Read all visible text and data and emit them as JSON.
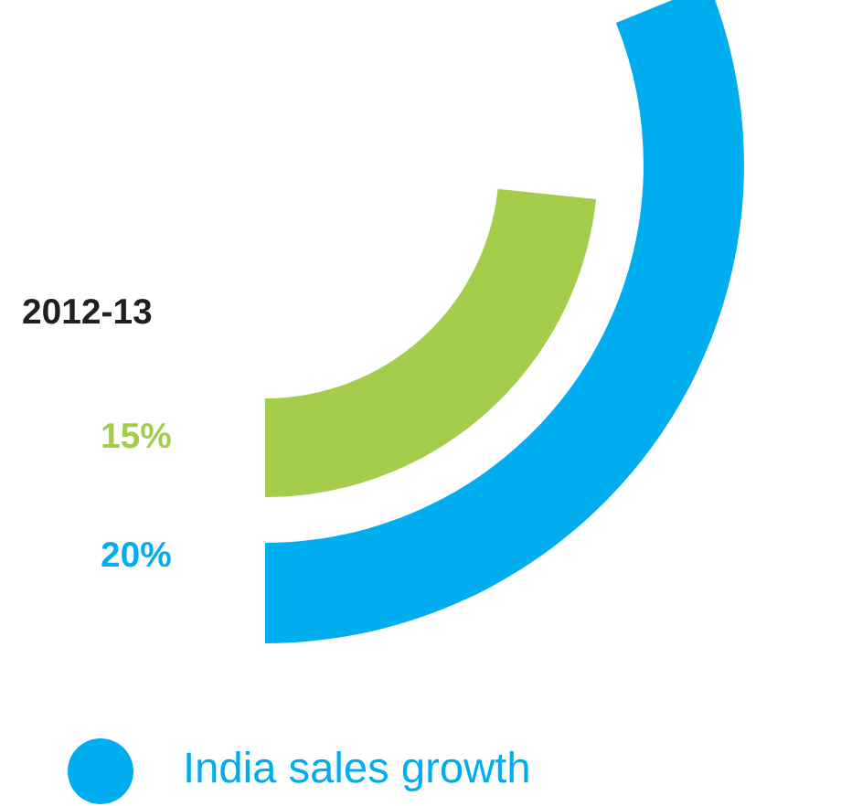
{
  "chart_data": {
    "type": "other",
    "title": "2012-13",
    "categories": [
      null,
      "India sales growth"
    ],
    "values": [
      15,
      20
    ],
    "colors": [
      "#a3cd4a",
      "#00aeef"
    ],
    "value_labels": [
      "15%",
      "20%"
    ]
  }
}
